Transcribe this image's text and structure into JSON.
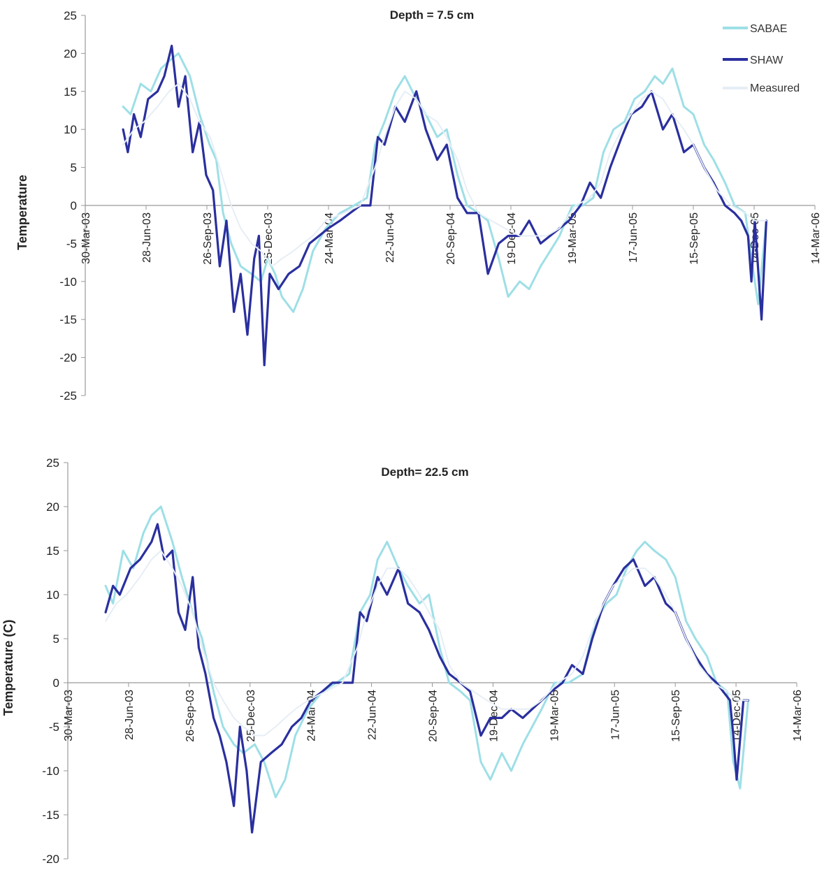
{
  "colors": {
    "SABAE": "#9edfe6",
    "SHAW": "#2a2f9e",
    "Measured": "#e6eef5",
    "axis": "#9a9a9a"
  },
  "chart_data": [
    {
      "type": "line",
      "title": "Depth = 7.5 cm",
      "ylabel": "Temperature",
      "xlabel": "",
      "ylim": [
        -25,
        25
      ],
      "yticks": [
        -25,
        -20,
        -15,
        -10,
        -5,
        0,
        5,
        10,
        15,
        20,
        25
      ],
      "xlim": [
        "2003-03-30",
        "2006-03-14"
      ],
      "x_tick_labels": [
        "30-Mar-03",
        "28-Jun-03",
        "26-Sep-03",
        "25-Dec-03",
        "24-Mar-04",
        "22-Jun-04",
        "20-Sep-04",
        "19-Dec-04",
        "19-Mar-05",
        "17-Jun-05",
        "15-Sep-05",
        "14-Dec-05",
        "14-Mar-06"
      ],
      "x_tick_dates": [
        "2003-03-30",
        "2003-06-28",
        "2003-09-26",
        "2003-12-25",
        "2004-03-24",
        "2004-06-22",
        "2004-09-20",
        "2004-12-19",
        "2005-03-19",
        "2005-06-17",
        "2005-09-15",
        "2005-12-14",
        "2006-03-14"
      ],
      "legend": [
        "SABAE",
        "SHAW",
        "Measured"
      ],
      "legend_position": "top-right",
      "series": [
        {
          "name": "SABAE",
          "x": [
            "2003-05-25",
            "2003-06-05",
            "2003-06-20",
            "2003-07-05",
            "2003-07-20",
            "2003-08-01",
            "2003-08-15",
            "2003-09-01",
            "2003-09-15",
            "2003-09-30",
            "2003-10-10",
            "2003-10-20",
            "2003-11-01",
            "2003-11-15",
            "2003-12-01",
            "2003-12-15",
            "2003-12-25",
            "2004-01-05",
            "2004-01-15",
            "2004-02-01",
            "2004-02-15",
            "2004-03-01",
            "2004-03-20",
            "2004-04-10",
            "2004-05-01",
            "2004-05-20",
            "2004-06-01",
            "2004-06-15",
            "2004-07-01",
            "2004-07-15",
            "2004-08-01",
            "2004-08-15",
            "2004-09-01",
            "2004-09-15",
            "2004-10-01",
            "2004-10-15",
            "2004-11-01",
            "2004-11-15",
            "2004-12-01",
            "2004-12-15",
            "2005-01-01",
            "2005-01-15",
            "2005-02-01",
            "2005-02-15",
            "2005-03-01",
            "2005-03-20",
            "2005-04-05",
            "2005-04-20",
            "2005-05-05",
            "2005-05-20",
            "2005-06-05",
            "2005-06-20",
            "2005-07-05",
            "2005-07-20",
            "2005-08-01",
            "2005-08-15",
            "2005-09-01",
            "2005-09-15",
            "2005-10-01",
            "2005-10-15",
            "2005-11-01",
            "2005-11-15",
            "2005-12-01",
            "2005-12-10",
            "2005-12-20",
            "2006-01-01"
          ],
          "y": [
            13,
            12,
            16,
            15,
            18,
            19,
            20,
            17,
            12,
            8,
            6,
            -1,
            -5,
            -8,
            -9,
            -10,
            -7,
            -9,
            -12,
            -14,
            -11,
            -6,
            -3,
            -1,
            0,
            1,
            8,
            11,
            15,
            17,
            14,
            12,
            9,
            10,
            4,
            0,
            -1,
            -2,
            -7,
            -12,
            -10,
            -11,
            -8,
            -6,
            -4,
            0,
            0,
            1,
            7,
            10,
            11,
            14,
            15,
            17,
            16,
            18,
            13,
            12,
            8,
            6,
            3,
            0,
            -1,
            -7,
            -13,
            -2
          ]
        },
        {
          "name": "SHAW",
          "x": [
            "2003-05-25",
            "2003-06-01",
            "2003-06-10",
            "2003-06-20",
            "2003-07-01",
            "2003-07-15",
            "2003-07-25",
            "2003-08-05",
            "2003-08-15",
            "2003-08-25",
            "2003-09-05",
            "2003-09-15",
            "2003-09-25",
            "2003-10-05",
            "2003-10-15",
            "2003-10-25",
            "2003-11-05",
            "2003-11-15",
            "2003-11-25",
            "2003-12-05",
            "2003-12-12",
            "2003-12-20",
            "2003-12-28",
            "2004-01-10",
            "2004-01-25",
            "2004-02-10",
            "2004-02-25",
            "2004-03-10",
            "2004-03-24",
            "2004-04-10",
            "2004-04-25",
            "2004-05-10",
            "2004-05-25",
            "2004-06-05",
            "2004-06-15",
            "2004-07-01",
            "2004-07-15",
            "2004-08-01",
            "2004-08-15",
            "2004-09-01",
            "2004-09-15",
            "2004-10-01",
            "2004-10-15",
            "2004-11-01",
            "2004-11-15",
            "2004-12-01",
            "2004-12-15",
            "2005-01-01",
            "2005-01-15",
            "2005-02-01",
            "2005-02-15",
            "2005-03-01",
            "2005-03-15",
            "2005-04-01",
            "2005-04-15",
            "2005-05-01",
            "2005-05-15",
            "2005-06-01",
            "2005-06-15",
            "2005-07-01",
            "2005-07-15",
            "2005-08-01",
            "2005-08-15",
            "2005-09-01",
            "2005-09-15",
            "2005-10-01",
            "2005-10-15",
            "2005-11-01",
            "2005-11-15",
            "2005-11-25",
            "2005-12-05",
            "2005-12-10",
            "2005-12-15",
            "2005-12-25",
            "2006-01-01"
          ],
          "y": [
            10,
            7,
            12,
            9,
            14,
            15,
            17,
            21,
            13,
            17,
            7,
            11,
            4,
            2,
            -8,
            -2,
            -14,
            -9,
            -17,
            -7,
            -4,
            -21,
            -9,
            -11,
            -9,
            -8,
            -5,
            -4,
            -3,
            -2,
            -1,
            0,
            0,
            9,
            8,
            13,
            11,
            15,
            10,
            6,
            8,
            1,
            -1,
            -1,
            -9,
            -5,
            -4,
            -4,
            -2,
            -5,
            -4,
            -3,
            -2,
            0,
            3,
            1,
            5,
            9,
            12,
            13,
            15,
            10,
            12,
            7,
            8,
            5,
            3,
            0,
            -1,
            -2,
            -4,
            -10,
            -2,
            -15,
            -2
          ]
        },
        {
          "name": "Measured",
          "x": [
            "2003-05-25",
            "2003-06-10",
            "2003-06-25",
            "2003-07-15",
            "2003-08-01",
            "2003-08-15",
            "2003-09-01",
            "2003-09-15",
            "2003-10-01",
            "2003-10-15",
            "2003-11-01",
            "2003-11-15",
            "2003-12-01",
            "2003-12-15",
            "2004-01-01",
            "2004-01-15",
            "2004-02-01",
            "2004-02-15",
            "2004-03-01",
            "2004-03-20",
            "2004-04-15",
            "2004-05-10",
            "2004-06-01",
            "2004-06-15",
            "2004-07-01",
            "2004-07-15",
            "2004-08-01",
            "2004-08-15",
            "2004-09-01",
            "2004-09-15",
            "2004-10-01",
            "2004-10-15",
            "2004-11-01",
            "2004-11-20",
            "2004-12-10",
            "2005-01-01",
            "2005-01-20",
            "2005-02-10",
            "2005-03-01",
            "2005-03-25",
            "2005-04-15",
            "2005-05-01",
            "2005-05-15",
            "2005-06-01",
            "2005-06-15",
            "2005-07-01",
            "2005-07-15",
            "2005-08-01",
            "2005-08-15",
            "2005-09-01",
            "2005-09-15",
            "2005-10-01",
            "2005-10-20",
            "2005-11-10",
            "2005-12-01",
            "2005-12-15",
            "2006-01-01"
          ],
          "y": [
            8,
            10,
            11,
            13,
            15,
            16,
            14,
            11,
            9,
            5,
            0,
            -3,
            -5,
            -6,
            -8,
            -7,
            -6,
            -5,
            -4,
            -2,
            -1,
            0,
            5,
            9,
            13,
            15,
            14,
            12,
            11,
            9,
            6,
            2,
            -1,
            -2,
            -3,
            -4,
            -4,
            -4,
            -3,
            0,
            1,
            3,
            7,
            10,
            12,
            14,
            15,
            14,
            12,
            10,
            8,
            5,
            2,
            0,
            -1,
            -2,
            -2
          ]
        }
      ]
    },
    {
      "type": "line",
      "title": "Depth= 22.5 cm",
      "ylabel": "Temperature (C)",
      "xlabel": "",
      "ylim": [
        -20,
        25
      ],
      "yticks": [
        -20,
        -15,
        -10,
        -5,
        0,
        5,
        10,
        15,
        20,
        25
      ],
      "xlim": [
        "2003-03-30",
        "2006-03-14"
      ],
      "x_tick_labels": [
        "30-Mar-03",
        "28-Jun-03",
        "26-Sep-03",
        "25-Dec-03",
        "24-Mar-04",
        "22-Jun-04",
        "20-Sep-04",
        "19-Dec-04",
        "19-Mar-05",
        "17-Jun-05",
        "15-Sep-05",
        "14-Dec-05",
        "14-Mar-06"
      ],
      "x_tick_dates": [
        "2003-03-30",
        "2003-06-28",
        "2003-09-26",
        "2003-12-25",
        "2004-03-24",
        "2004-06-22",
        "2004-09-20",
        "2004-12-19",
        "2005-03-19",
        "2005-06-17",
        "2005-09-15",
        "2005-12-14",
        "2006-03-14"
      ],
      "series": [
        {
          "name": "SABAE",
          "x": [
            "2003-05-25",
            "2003-06-05",
            "2003-06-20",
            "2003-07-05",
            "2003-07-20",
            "2003-08-01",
            "2003-08-15",
            "2003-09-01",
            "2003-09-15",
            "2003-10-01",
            "2003-10-15",
            "2003-11-01",
            "2003-11-15",
            "2003-12-01",
            "2003-12-15",
            "2004-01-01",
            "2004-01-15",
            "2004-02-01",
            "2004-02-15",
            "2004-03-01",
            "2004-03-20",
            "2004-04-10",
            "2004-05-01",
            "2004-05-20",
            "2004-06-05",
            "2004-06-20",
            "2004-07-01",
            "2004-07-15",
            "2004-08-01",
            "2004-08-15",
            "2004-09-01",
            "2004-09-15",
            "2004-10-01",
            "2004-10-15",
            "2004-11-01",
            "2004-11-15",
            "2004-12-01",
            "2004-12-15",
            "2005-01-01",
            "2005-01-15",
            "2005-02-01",
            "2005-02-15",
            "2005-03-01",
            "2005-03-20",
            "2005-04-10",
            "2005-05-01",
            "2005-05-20",
            "2005-06-05",
            "2005-06-20",
            "2005-07-05",
            "2005-07-20",
            "2005-08-01",
            "2005-08-15",
            "2005-09-01",
            "2005-09-15",
            "2005-10-01",
            "2005-10-15",
            "2005-11-01",
            "2005-11-15",
            "2005-12-01",
            "2005-12-10",
            "2005-12-20",
            "2006-01-01"
          ],
          "y": [
            11,
            9,
            15,
            13,
            17,
            19,
            20,
            16,
            12,
            8,
            5,
            -1,
            -5,
            -7,
            -8,
            -7,
            -9,
            -13,
            -11,
            -6,
            -3,
            -1,
            0,
            1,
            8,
            10,
            14,
            16,
            13,
            11,
            9,
            10,
            4,
            0,
            -1,
            -2,
            -9,
            -11,
            -8,
            -10,
            -7,
            -5,
            -3,
            0,
            0,
            1,
            7,
            9,
            10,
            13,
            15,
            16,
            15,
            14,
            12,
            7,
            5,
            3,
            0,
            -1,
            -9,
            -12,
            -2
          ]
        },
        {
          "name": "SHAW",
          "x": [
            "2003-05-25",
            "2003-06-05",
            "2003-06-15",
            "2003-07-01",
            "2003-07-15",
            "2003-08-01",
            "2003-08-10",
            "2003-08-20",
            "2003-09-01",
            "2003-09-10",
            "2003-09-20",
            "2003-10-01",
            "2003-10-10",
            "2003-10-20",
            "2003-11-01",
            "2003-11-10",
            "2003-11-20",
            "2003-12-01",
            "2003-12-10",
            "2003-12-20",
            "2003-12-28",
            "2004-01-10",
            "2004-01-25",
            "2004-02-10",
            "2004-02-25",
            "2004-03-10",
            "2004-03-24",
            "2004-04-10",
            "2004-04-25",
            "2004-05-10",
            "2004-05-25",
            "2004-06-05",
            "2004-06-15",
            "2004-07-01",
            "2004-07-15",
            "2004-08-01",
            "2004-08-15",
            "2004-09-01",
            "2004-09-15",
            "2004-10-01",
            "2004-10-15",
            "2004-11-01",
            "2004-11-15",
            "2004-12-01",
            "2004-12-15",
            "2005-01-01",
            "2005-01-15",
            "2005-02-01",
            "2005-02-15",
            "2005-03-01",
            "2005-03-15",
            "2005-04-01",
            "2005-04-15",
            "2005-05-01",
            "2005-05-15",
            "2005-06-01",
            "2005-06-15",
            "2005-07-01",
            "2005-07-15",
            "2005-08-01",
            "2005-08-15",
            "2005-09-01",
            "2005-09-15",
            "2005-10-01",
            "2005-10-15",
            "2005-11-01",
            "2005-11-15",
            "2005-11-25",
            "2005-12-05",
            "2005-12-10",
            "2005-12-15",
            "2005-12-25",
            "2006-01-01"
          ],
          "y": [
            8,
            11,
            10,
            13,
            14,
            16,
            18,
            14,
            15,
            8,
            6,
            12,
            4,
            1,
            -4,
            -6,
            -9,
            -14,
            -5,
            -10,
            -17,
            -9,
            -8,
            -7,
            -5,
            -4,
            -2,
            -1,
            0,
            0,
            0,
            8,
            7,
            12,
            10,
            13,
            9,
            8,
            6,
            3,
            1,
            0,
            -1,
            -6,
            -4,
            -4,
            -3,
            -4,
            -3,
            -2,
            -1,
            0,
            2,
            1,
            5,
            9,
            11,
            13,
            14,
            11,
            12,
            9,
            8,
            5,
            3,
            1,
            0,
            -1,
            -2,
            -6,
            -11,
            -2,
            -2
          ]
        },
        {
          "name": "Measured",
          "x": [
            "2003-05-25",
            "2003-06-10",
            "2003-06-25",
            "2003-07-15",
            "2003-08-01",
            "2003-08-15",
            "2003-09-01",
            "2003-09-15",
            "2003-10-01",
            "2003-10-15",
            "2003-11-01",
            "2003-11-15",
            "2003-12-01",
            "2003-12-15",
            "2004-01-01",
            "2004-01-15",
            "2004-02-01",
            "2004-02-15",
            "2004-03-01",
            "2004-03-20",
            "2004-04-15",
            "2004-05-10",
            "2004-06-01",
            "2004-06-15",
            "2004-07-01",
            "2004-07-15",
            "2004-08-01",
            "2004-08-15",
            "2004-09-01",
            "2004-09-15",
            "2004-10-01",
            "2004-10-15",
            "2004-11-01",
            "2004-11-20",
            "2004-12-10",
            "2005-01-01",
            "2005-01-20",
            "2005-02-10",
            "2005-03-01",
            "2005-03-25",
            "2005-04-15",
            "2005-05-01",
            "2005-05-15",
            "2005-06-01",
            "2005-06-15",
            "2005-07-01",
            "2005-07-15",
            "2005-08-01",
            "2005-08-15",
            "2005-09-01",
            "2005-09-15",
            "2005-10-01",
            "2005-10-20",
            "2005-11-10",
            "2005-12-01",
            "2005-12-15",
            "2006-01-01"
          ],
          "y": [
            7,
            9,
            10,
            12,
            14,
            15,
            13,
            11,
            8,
            4,
            0,
            -2,
            -4,
            -5,
            -6,
            -6,
            -5,
            -4,
            -3,
            -2,
            -1,
            0,
            4,
            8,
            11,
            13,
            13,
            12,
            10,
            8,
            6,
            2,
            0,
            -1,
            -2,
            -3,
            -3,
            -3,
            -2,
            0,
            1,
            3,
            6,
            9,
            11,
            12,
            13,
            13,
            12,
            10,
            8,
            5,
            2,
            0,
            -1,
            -2,
            -2
          ]
        }
      ]
    }
  ]
}
